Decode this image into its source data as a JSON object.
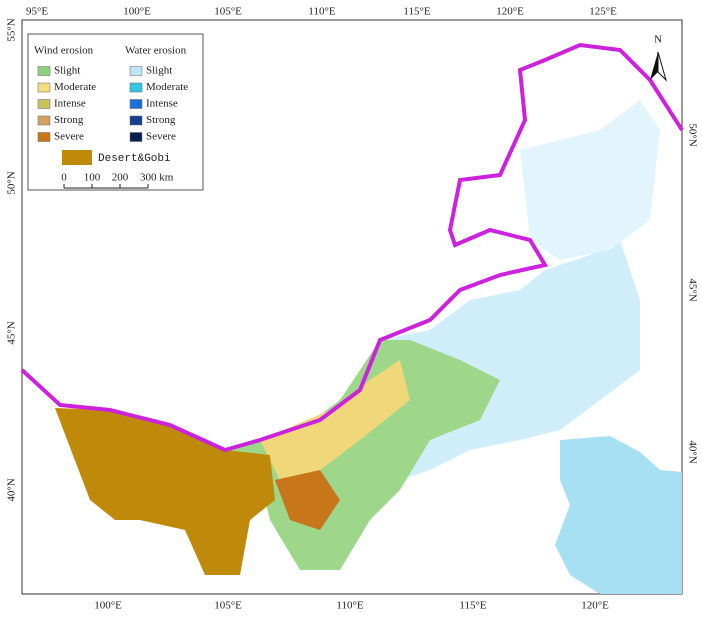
{
  "top_labels": [
    "95°E",
    "100°E",
    "105°E",
    "110°E",
    "115°E",
    "120°E",
    "125°E"
  ],
  "bottom_labels": [
    "100°E",
    "105°E",
    "110°E",
    "115°E",
    "120°E"
  ],
  "left_labels": [
    "55°N",
    "50°N",
    "45°N",
    "40°N"
  ],
  "right_labels": [
    "50°N",
    "45°N",
    "40°N"
  ],
  "north": "N",
  "legend": {
    "wind_title": "Wind erosion",
    "wind": [
      {
        "label": "Slight",
        "color": "#8fd17e"
      },
      {
        "label": "Moderate",
        "color": "#f5dc7c"
      },
      {
        "label": "Intense",
        "color": "#c9c45a"
      },
      {
        "label": "Strong",
        "color": "#d4a060"
      },
      {
        "label": "Severe",
        "color": "#c7761a"
      }
    ],
    "water_title": "Water erosion",
    "water": [
      {
        "label": "Slight",
        "color": "#bfe6f7"
      },
      {
        "label": "Moderate",
        "color": "#33c6e0"
      },
      {
        "label": "Intense",
        "color": "#1a6ee0"
      },
      {
        "label": "Strong",
        "color": "#123f8f"
      },
      {
        "label": "Severe",
        "color": "#0a1f4f"
      }
    ],
    "desert": {
      "label": "Desert&Gobi",
      "color": "#bf8a0a"
    }
  },
  "scale": [
    "0",
    "100",
    "200",
    "300 km"
  ]
}
